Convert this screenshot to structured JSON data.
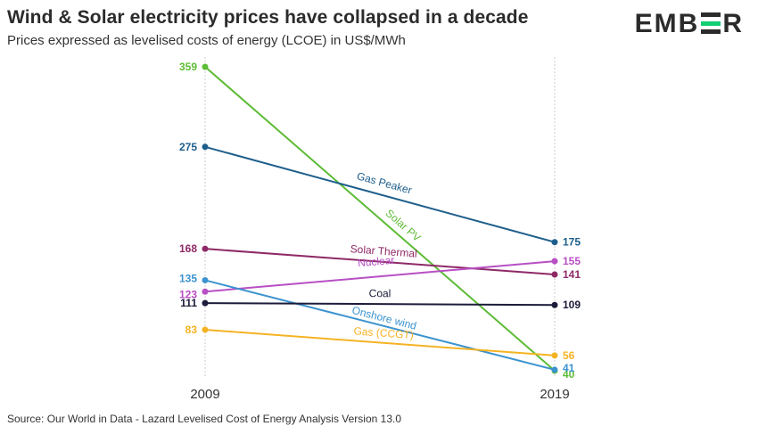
{
  "header": {
    "title": "Wind & Solar electricity prices have collapsed in a decade",
    "subtitle": "Prices expressed as levelised costs of energy (LCOE) in US$/MWh",
    "logo_text_left": "EMB",
    "logo_text_right": "R"
  },
  "footer": {
    "source": "Source: Our World in Data - Lazard Levelised Cost of Energy Analysis Version 13.0"
  },
  "chart_data": {
    "type": "line",
    "title": "Wind & Solar electricity prices have collapsed in a decade",
    "subtitle": "Prices expressed as levelised costs of energy (LCOE) in US$/MWh",
    "x": [
      "2009",
      "2019"
    ],
    "ylim": [
      40,
      359
    ],
    "grid": false,
    "series": [
      {
        "name": "Solar PV",
        "values": [
          359,
          40
        ],
        "start_label": "359",
        "end_label": "40",
        "color": "#5dbb35"
      },
      {
        "name": "Gas Peaker",
        "values": [
          275,
          175
        ],
        "start_label": "275",
        "end_label": "175",
        "color": "#1d5e8c"
      },
      {
        "name": "Solar Thermal",
        "values": [
          168,
          141
        ],
        "start_label": "168",
        "end_label": "141",
        "color": "#8e2a66"
      },
      {
        "name": "Nuclear",
        "values": [
          123,
          155
        ],
        "start_label": "123",
        "end_label": "155",
        "color": "#b84fc4"
      },
      {
        "name": "Onshore wind",
        "values": [
          135,
          41
        ],
        "start_label": "135",
        "end_label": "41",
        "color": "#3b93cf"
      },
      {
        "name": "Coal",
        "values": [
          111,
          109
        ],
        "start_label": "111",
        "end_label": "109",
        "color": "#1b1b3a"
      },
      {
        "name": "Gas (CCGT)",
        "values": [
          83,
          56
        ],
        "start_label": "83",
        "end_label": "56",
        "color": "#f5b324"
      }
    ]
  }
}
